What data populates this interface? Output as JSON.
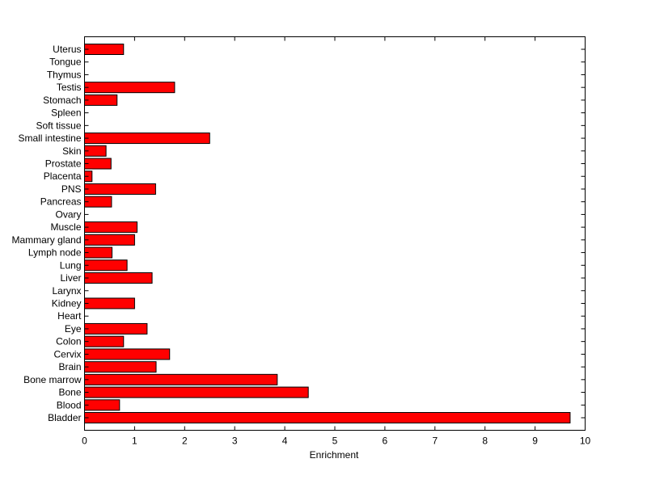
{
  "chart_data": {
    "type": "bar",
    "orientation": "horizontal",
    "categories": [
      "Bladder",
      "Blood",
      "Bone",
      "Bone marrow",
      "Brain",
      "Cervix",
      "Colon",
      "Eye",
      "Heart",
      "Kidney",
      "Larynx",
      "Liver",
      "Lung",
      "Lymph node",
      "Mammary gland",
      "Muscle",
      "Ovary",
      "Pancreas",
      "PNS",
      "Placenta",
      "Prostate",
      "Skin",
      "Small intestine",
      "Soft tissue",
      "Spleen",
      "Stomach",
      "Testis",
      "Thymus",
      "Tongue",
      "Uterus"
    ],
    "values": [
      9.7,
      0.7,
      4.47,
      3.85,
      1.43,
      1.7,
      0.78,
      1.25,
      0,
      1.0,
      0,
      1.35,
      0.85,
      0.55,
      1.0,
      1.05,
      0,
      0.54,
      1.42,
      0.15,
      0.53,
      0.43,
      2.5,
      0,
      0,
      0.65,
      1.8,
      0,
      0,
      0.78
    ],
    "xlabel": "Enrichment",
    "ylabel": "",
    "title": "",
    "xlim": [
      0,
      10
    ],
    "xticks": [
      0,
      1,
      2,
      3,
      4,
      5,
      6,
      7,
      8,
      9,
      10
    ],
    "bar_color": "#ff0000",
    "grid": false
  }
}
